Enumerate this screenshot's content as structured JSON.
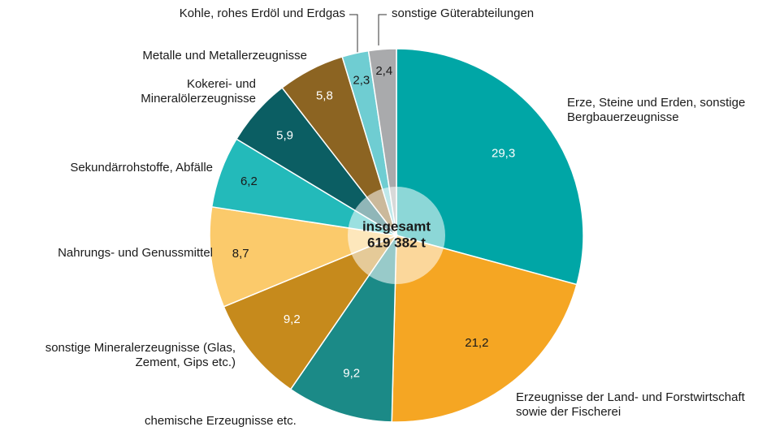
{
  "chart_data": {
    "type": "pie",
    "center_label": [
      "insgesamt",
      "619 382 t"
    ],
    "categories": [
      "Erze, Steine und Erden, sonstige Bergbauerzeugnisse",
      "Erzeugnisse der Land- und Forstwirtschaft sowie der Fischerei",
      "chemische Erzeugnisse etc.",
      "sonstige Mineralerzeugnisse (Glas, Zement, Gips etc.)",
      "Nahrungs- und Genussmittel",
      "Sekundärrohstoffe, Abfälle",
      "Kokerei- und Mineralölerzeugnisse",
      "Metalle und Metallerzeugnisse",
      "Kohle, rohes Erdöl und Erdgas",
      "sonstige Güterabteilungen"
    ],
    "values": [
      29.3,
      21.2,
      9.2,
      9.2,
      8.7,
      6.2,
      5.9,
      5.8,
      2.3,
      2.4
    ],
    "value_labels": [
      "29,3",
      "21,2",
      "9,2",
      "9,2",
      "8,7",
      "6,2",
      "5,9",
      "5,8",
      "2,3",
      "2,4"
    ],
    "colors": [
      "#00a6a6",
      "#f5a623",
      "#1b8a87",
      "#c68a1c",
      "#fbca6b",
      "#23baba",
      "#0b5e63",
      "#8c6422",
      "#6fcdd2",
      "#a9aaac"
    ]
  }
}
